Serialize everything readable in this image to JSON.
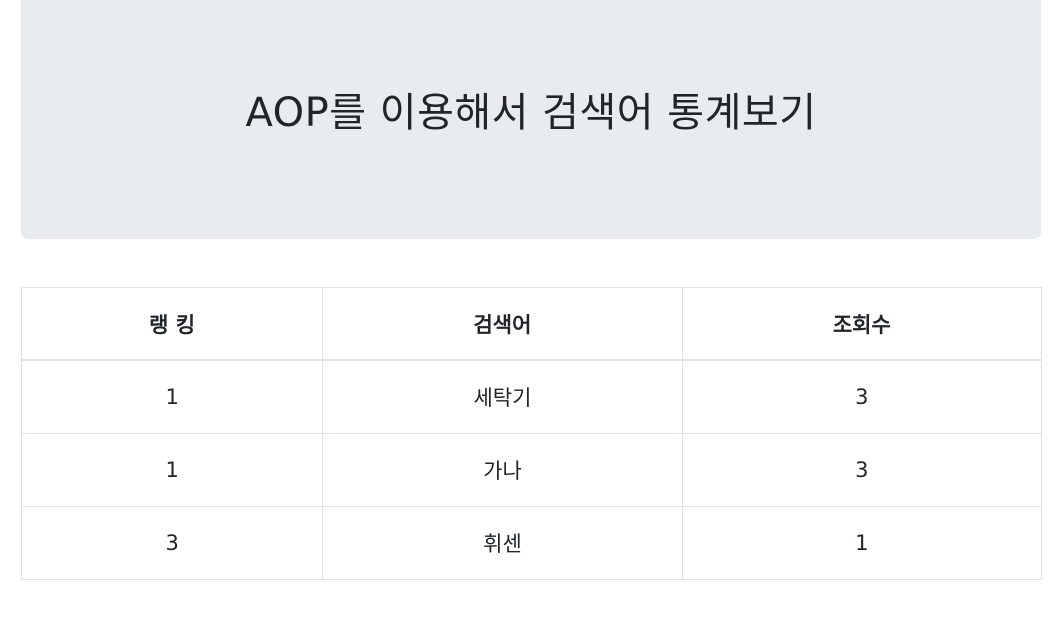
{
  "header": {
    "title": "AOP를 이용해서 검색어 통계보기"
  },
  "table": {
    "headers": [
      "랭 킹",
      "검색어",
      "조회수"
    ],
    "rows": [
      {
        "rank": "1",
        "keyword": "세탁기",
        "views": "3"
      },
      {
        "rank": "1",
        "keyword": "가나",
        "views": "3"
      },
      {
        "rank": "3",
        "keyword": "휘센",
        "views": "1"
      }
    ]
  },
  "colors": {
    "jumbotron_bg": "#e9ecef",
    "border": "#dee2e6",
    "text": "#212529"
  }
}
